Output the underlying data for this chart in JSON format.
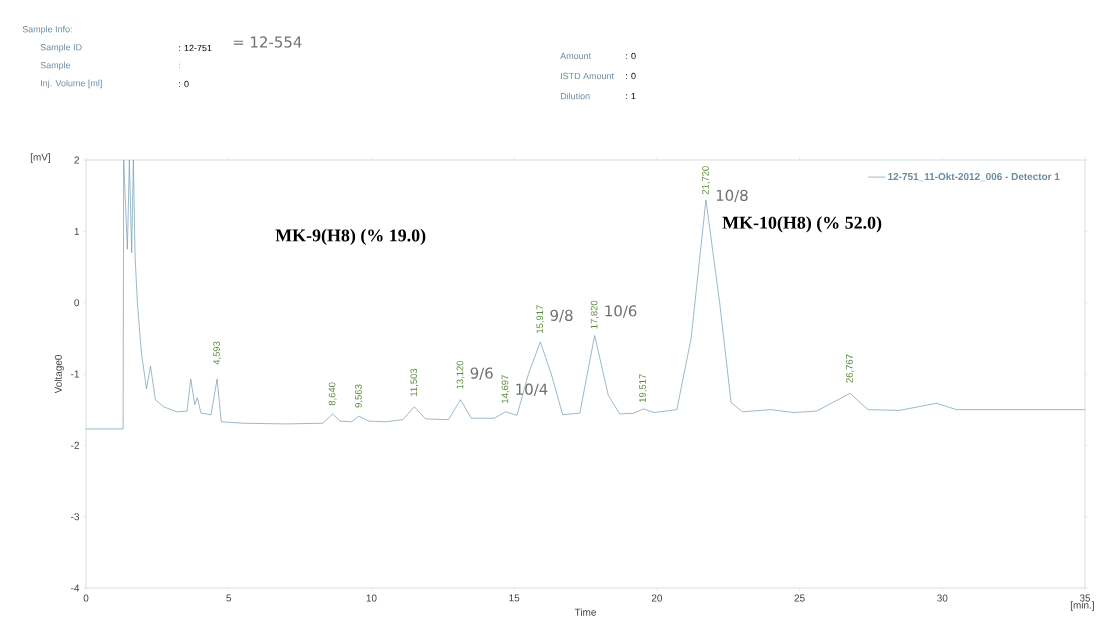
{
  "chart_data": {
    "type": "line",
    "xlabel": "Time",
    "ylabel": "Voltage0",
    "x": [
      0,
      1.3,
      1.32,
      1.45,
      1.52,
      1.6,
      1.66,
      1.72,
      1.8,
      1.94,
      2.12,
      2.26,
      2.43,
      2.72,
      3.18,
      3.54,
      3.67,
      3.81,
      3.9,
      4.03,
      4.38,
      4.593,
      4.74,
      5.5,
      7,
      8.3,
      8.64,
      8.9,
      9.3,
      9.563,
      9.9,
      10.5,
      11.1,
      11.503,
      11.9,
      12.7,
      13.12,
      13.5,
      14.3,
      14.697,
      15.1,
      15.5,
      15.917,
      16.3,
      16.7,
      17.3,
      17.82,
      18.3,
      18.7,
      19.2,
      19.517,
      19.9,
      20.7,
      21.2,
      21.72,
      22.2,
      22.6,
      23,
      24,
      24.8,
      25.6,
      26.767,
      27.4,
      28.5,
      29.8,
      30.5,
      35
    ],
    "series": [
      {
        "name": "12-751_11-Okt-2012_006 - Detector 1",
        "color": "#6f9bb3",
        "values": [
          -1.77,
          -1.77,
          2.0,
          0.75,
          2.0,
          0.7,
          2.0,
          0.64,
          0.0,
          -0.7,
          -1.21,
          -0.89,
          -1.36,
          -1.46,
          -1.53,
          -1.52,
          -1.07,
          -1.43,
          -1.33,
          -1.55,
          -1.57,
          -1.07,
          -1.67,
          -1.69,
          -1.7,
          -1.69,
          -1.56,
          -1.66,
          -1.67,
          -1.59,
          -1.66,
          -1.67,
          -1.64,
          -1.46,
          -1.63,
          -1.64,
          -1.36,
          -1.62,
          -1.62,
          -1.53,
          -1.58,
          -1.0,
          -0.55,
          -1.0,
          -1.57,
          -1.55,
          -0.46,
          -1.3,
          -1.56,
          -1.55,
          -1.49,
          -1.54,
          -1.5,
          -0.5,
          1.44,
          0.0,
          -1.4,
          -1.53,
          -1.5,
          -1.54,
          -1.52,
          -1.27,
          -1.5,
          -1.51,
          -1.41,
          -1.5,
          -1.5
        ]
      }
    ],
    "xlim": [
      0,
      35
    ],
    "xticks": [
      0,
      5,
      10,
      15,
      20,
      25,
      30,
      35
    ],
    "ylim": [
      -4,
      2
    ],
    "yticks": [
      -4,
      -3,
      -2,
      -1,
      0,
      1,
      2
    ],
    "legend": "top right",
    "annotations": [
      "Sample Info:",
      "Sample ID",
      ": 12-751",
      "= 12-554",
      "Sample",
      ":",
      "Inj. Volume [ml]",
      ": 0",
      "Amount",
      ": 0",
      "ISTD Amount",
      ": 0",
      "Dilution",
      ": 1",
      "[mV]",
      "[min.]",
      "MK-9(H8) (% 19.0)",
      {
        "text": "4,593",
        "x": 4.593,
        "y": -1.07
      },
      {
        "text": "8,640",
        "x": 8.64,
        "y": -1.56
      },
      {
        "text": "9,563",
        "x": 9.563,
        "y": -1.59
      },
      {
        "text": "11,503",
        "x": 11.503,
        "y": -1.46
      },
      {
        "text": "13,120",
        "x": 13.12,
        "y": -1.36
      },
      {
        "text": "14,697",
        "x": 14.697,
        "y": -1.53
      },
      {
        "text": "15,917",
        "x": 15.917,
        "y": -0.55
      },
      {
        "text": "17,820",
        "x": 17.82,
        "y": -0.46
      },
      {
        "text": "19,517",
        "x": 19.517,
        "y": -1.49
      },
      {
        "text": "21,720",
        "x": 21.72,
        "y": 1.44
      },
      {
        "text": "26,767",
        "x": 26.767,
        "y": -1.27
      },
      {
        "text": "9/6",
        "x": 13.12,
        "y": -1.36
      },
      {
        "text": "10/4",
        "x": 14.697,
        "y": -1.53
      },
      {
        "text": "9/8",
        "x": 15.917,
        "y": -0.55
      },
      {
        "text": "10/6",
        "x": 17.82,
        "y": -0.46
      },
      {
        "text": "10/8",
        "x": 21.72,
        "y": 1.44
      },
      {
        "text": "MK-10(H8) (% 52.0)",
        "x": 21.72,
        "y": 1.44
      }
    ]
  }
}
